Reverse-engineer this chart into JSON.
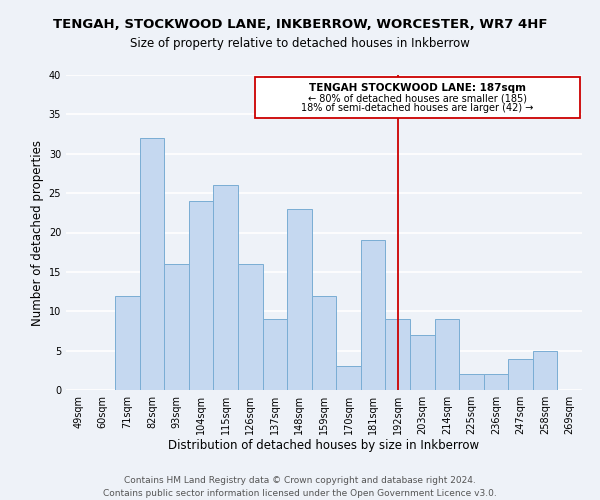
{
  "title": "TENGAH, STOCKWOOD LANE, INKBERROW, WORCESTER, WR7 4HF",
  "subtitle": "Size of property relative to detached houses in Inkberrow",
  "xlabel": "Distribution of detached houses by size in Inkberrow",
  "ylabel": "Number of detached properties",
  "bar_labels": [
    "49sqm",
    "60sqm",
    "71sqm",
    "82sqm",
    "93sqm",
    "104sqm",
    "115sqm",
    "126sqm",
    "137sqm",
    "148sqm",
    "159sqm",
    "170sqm",
    "181sqm",
    "192sqm",
    "203sqm",
    "214sqm",
    "225sqm",
    "236sqm",
    "247sqm",
    "258sqm",
    "269sqm"
  ],
  "bar_values": [
    0,
    0,
    12,
    32,
    16,
    24,
    26,
    16,
    9,
    23,
    12,
    3,
    19,
    9,
    7,
    9,
    2,
    2,
    4,
    5,
    0
  ],
  "bar_color": "#c5d8f0",
  "bar_edge_color": "#7aadd4",
  "vline_x_idx": 13,
  "vline_color": "#cc0000",
  "ann_line1": "TENGAH STOCKWOOD LANE: 187sqm",
  "ann_line2": "← 80% of detached houses are smaller (185)",
  "ann_line3": "18% of semi-detached houses are larger (42) →",
  "annotation_box_edge_color": "#cc0000",
  "ylim": [
    0,
    40
  ],
  "yticks": [
    0,
    5,
    10,
    15,
    20,
    25,
    30,
    35,
    40
  ],
  "footer_line1": "Contains HM Land Registry data © Crown copyright and database right 2024.",
  "footer_line2": "Contains public sector information licensed under the Open Government Licence v3.0.",
  "background_color": "#eef2f8",
  "grid_color": "#ffffff",
  "title_fontsize": 9.5,
  "subtitle_fontsize": 8.5,
  "axis_label_fontsize": 8.5,
  "tick_fontsize": 7,
  "footer_fontsize": 6.5,
  "ann_fontsize_title": 7.5,
  "ann_fontsize_body": 7
}
